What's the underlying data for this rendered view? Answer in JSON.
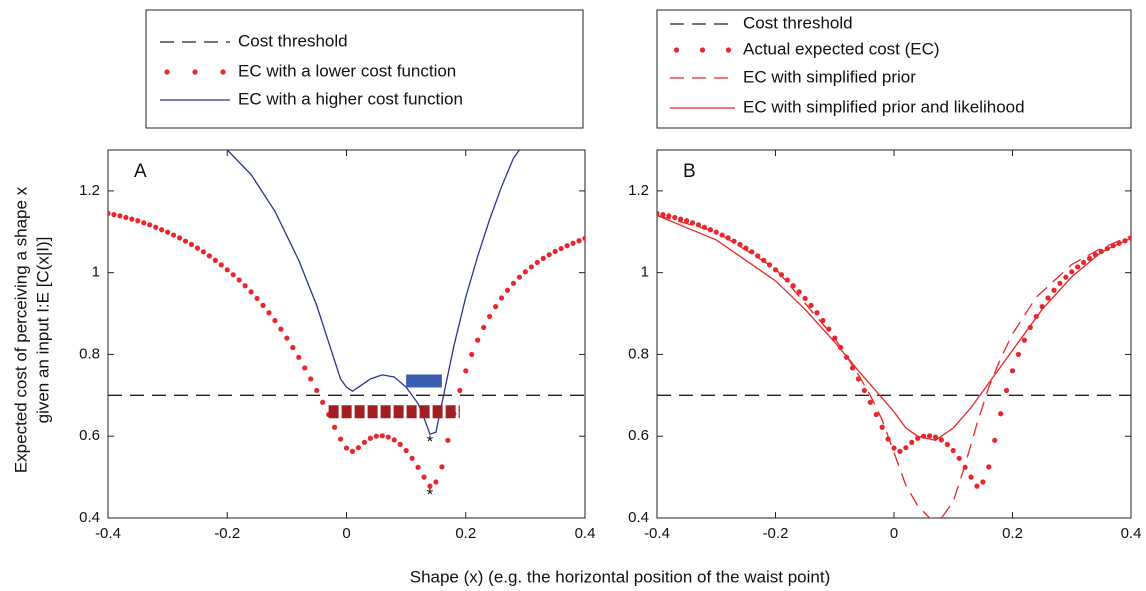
{
  "figure": {
    "xlabel": "Shape (x) (e.g. the horizontal position of the waist point)",
    "ylabel": [
      "Expected cost of perceiving a shape x",
      "given an input I:E [C(x|I)]"
    ]
  },
  "chart_data": [
    {
      "type": "line",
      "panel_label": "A",
      "xlim": [
        -0.4,
        0.4
      ],
      "ylim": [
        0.4,
        1.3
      ],
      "xticks": [
        -0.4,
        -0.2,
        0,
        0.2,
        0.4
      ],
      "yticks": [
        0.4,
        0.6,
        0.8,
        1,
        1.2
      ],
      "series": [
        {
          "name": "Cost threshold",
          "color": "#222222",
          "style": "dashed",
          "x": [
            -0.4,
            0.4
          ],
          "values": [
            0.7,
            0.7
          ]
        },
        {
          "name": "EC with a lower cost function",
          "color": "#e8262b",
          "style": "dots",
          "x": [
            -0.4,
            -0.39,
            -0.38,
            -0.37,
            -0.36,
            -0.35,
            -0.34,
            -0.33,
            -0.32,
            -0.31,
            -0.3,
            -0.29,
            -0.28,
            -0.27,
            -0.26,
            -0.25,
            -0.24,
            -0.23,
            -0.22,
            -0.21,
            -0.2,
            -0.19,
            -0.18,
            -0.17,
            -0.16,
            -0.15,
            -0.14,
            -0.13,
            -0.12,
            -0.11,
            -0.1,
            -0.09,
            -0.08,
            -0.07,
            -0.06,
            -0.05,
            -0.04,
            -0.03,
            -0.02,
            -0.01,
            0,
            0.01,
            0.02,
            0.03,
            0.04,
            0.05,
            0.06,
            0.07,
            0.08,
            0.09,
            0.1,
            0.11,
            0.12,
            0.13,
            0.14,
            0.15,
            0.16,
            0.17,
            0.18,
            0.19,
            0.2,
            0.21,
            0.22,
            0.23,
            0.24,
            0.25,
            0.26,
            0.27,
            0.28,
            0.29,
            0.3,
            0.31,
            0.32,
            0.33,
            0.34,
            0.35,
            0.36,
            0.37,
            0.38,
            0.39,
            0.4
          ],
          "values": [
            1.145,
            1.142,
            1.139,
            1.135,
            1.131,
            1.127,
            1.122,
            1.117,
            1.111,
            1.105,
            1.099,
            1.092,
            1.085,
            1.077,
            1.069,
            1.06,
            1.051,
            1.041,
            1.03,
            1.019,
            1.007,
            0.995,
            0.982,
            0.968,
            0.953,
            0.937,
            0.92,
            0.902,
            0.883,
            0.862,
            0.84,
            0.817,
            0.793,
            0.767,
            0.74,
            0.712,
            0.683,
            0.653,
            0.622,
            0.593,
            0.571,
            0.563,
            0.572,
            0.585,
            0.595,
            0.6,
            0.601,
            0.598,
            0.591,
            0.58,
            0.565,
            0.546,
            0.524,
            0.5,
            0.478,
            0.488,
            0.525,
            0.59,
            0.655,
            0.712,
            0.76,
            0.8,
            0.835,
            0.866,
            0.893,
            0.917,
            0.938,
            0.957,
            0.974,
            0.989,
            1.002,
            1.014,
            1.025,
            1.035,
            1.044,
            1.052,
            1.059,
            1.066,
            1.072,
            1.078,
            1.084
          ]
        },
        {
          "name": "EC with a higher cost function",
          "color": "#2b3590",
          "style": "line",
          "x": [
            -0.2,
            -0.16,
            -0.12,
            -0.08,
            -0.05,
            -0.03,
            -0.01,
            0,
            0.01,
            0.02,
            0.04,
            0.06,
            0.08,
            0.1,
            0.12,
            0.13,
            0.14,
            0.15,
            0.16,
            0.17,
            0.18,
            0.2,
            0.22,
            0.24,
            0.26,
            0.28,
            0.29
          ],
          "values": [
            1.3,
            1.24,
            1.15,
            1.03,
            0.92,
            0.83,
            0.74,
            0.72,
            0.71,
            0.72,
            0.74,
            0.75,
            0.745,
            0.72,
            0.68,
            0.645,
            0.605,
            0.61,
            0.68,
            0.75,
            0.82,
            0.94,
            1.04,
            1.13,
            1.21,
            1.28,
            1.3
          ]
        }
      ],
      "ranges": [
        {
          "color": "#a11e22",
          "x": [
            -0.03,
            0.19
          ],
          "y": 0.66
        },
        {
          "color": "#3a5fb0",
          "x": [
            0.1,
            0.16
          ],
          "y": 0.735
        }
      ],
      "annotations": [
        {
          "text": "*",
          "x": 0.14,
          "y": 0.585
        },
        {
          "text": "*",
          "x": 0.14,
          "y": 0.455
        }
      ]
    },
    {
      "type": "line",
      "panel_label": "B",
      "xlim": [
        -0.4,
        0.4
      ],
      "ylim": [
        0.4,
        1.3
      ],
      "xticks": [
        -0.4,
        -0.2,
        0,
        0.2,
        0.4
      ],
      "yticks": [
        0.4,
        0.6,
        0.8,
        1,
        1.2
      ],
      "series": [
        {
          "name": "Cost threshold",
          "color": "#222222",
          "style": "dashed",
          "x": [
            -0.4,
            0.4
          ],
          "values": [
            0.7,
            0.7
          ]
        },
        {
          "name": "Actual expected cost (EC)",
          "color": "#e8262b",
          "style": "dots",
          "x": [
            -0.4,
            -0.39,
            -0.38,
            -0.37,
            -0.36,
            -0.35,
            -0.34,
            -0.33,
            -0.32,
            -0.31,
            -0.3,
            -0.29,
            -0.28,
            -0.27,
            -0.26,
            -0.25,
            -0.24,
            -0.23,
            -0.22,
            -0.21,
            -0.2,
            -0.19,
            -0.18,
            -0.17,
            -0.16,
            -0.15,
            -0.14,
            -0.13,
            -0.12,
            -0.11,
            -0.1,
            -0.09,
            -0.08,
            -0.07,
            -0.06,
            -0.05,
            -0.04,
            -0.03,
            -0.02,
            -0.01,
            0,
            0.01,
            0.02,
            0.03,
            0.04,
            0.05,
            0.06,
            0.07,
            0.08,
            0.09,
            0.1,
            0.11,
            0.12,
            0.13,
            0.14,
            0.15,
            0.16,
            0.17,
            0.18,
            0.19,
            0.2,
            0.21,
            0.22,
            0.23,
            0.24,
            0.25,
            0.26,
            0.27,
            0.28,
            0.29,
            0.3,
            0.31,
            0.32,
            0.33,
            0.34,
            0.35,
            0.36,
            0.37,
            0.38,
            0.39,
            0.4
          ],
          "values": [
            1.145,
            1.142,
            1.139,
            1.135,
            1.131,
            1.127,
            1.122,
            1.117,
            1.111,
            1.105,
            1.099,
            1.092,
            1.085,
            1.077,
            1.069,
            1.06,
            1.051,
            1.041,
            1.03,
            1.019,
            1.007,
            0.995,
            0.982,
            0.968,
            0.953,
            0.937,
            0.92,
            0.902,
            0.883,
            0.862,
            0.84,
            0.817,
            0.793,
            0.767,
            0.74,
            0.712,
            0.683,
            0.653,
            0.622,
            0.593,
            0.571,
            0.563,
            0.572,
            0.585,
            0.595,
            0.6,
            0.601,
            0.598,
            0.591,
            0.58,
            0.565,
            0.546,
            0.524,
            0.5,
            0.478,
            0.488,
            0.525,
            0.59,
            0.655,
            0.712,
            0.76,
            0.8,
            0.835,
            0.866,
            0.893,
            0.917,
            0.938,
            0.957,
            0.974,
            0.989,
            1.002,
            1.014,
            1.025,
            1.035,
            1.044,
            1.052,
            1.059,
            1.066,
            1.072,
            1.078,
            1.084
          ]
        },
        {
          "name": "EC with simplified prior",
          "color": "#e8262b",
          "style": "dashed",
          "x": [
            -0.4,
            -0.3,
            -0.2,
            -0.1,
            -0.06,
            -0.04,
            -0.02,
            0,
            0.02,
            0.04,
            0.06,
            0.08,
            0.1,
            0.12,
            0.14,
            0.16,
            0.18,
            0.2,
            0.24,
            0.3,
            0.35,
            0.4
          ],
          "values": [
            1.14,
            1.1,
            1.01,
            0.84,
            0.75,
            0.7,
            0.64,
            0.56,
            0.48,
            0.43,
            0.4,
            0.4,
            0.44,
            0.53,
            0.63,
            0.72,
            0.79,
            0.85,
            0.94,
            1.02,
            1.06,
            1.09
          ]
        },
        {
          "name": "EC with simplified prior and likelihood",
          "color": "#e8262b",
          "style": "line",
          "x": [
            -0.4,
            -0.3,
            -0.2,
            -0.15,
            -0.1,
            -0.06,
            -0.03,
            0,
            0.02,
            0.04,
            0.07,
            0.1,
            0.13,
            0.16,
            0.2,
            0.25,
            0.3,
            0.35,
            0.4
          ],
          "values": [
            1.14,
            1.08,
            0.98,
            0.91,
            0.83,
            0.76,
            0.71,
            0.66,
            0.62,
            0.6,
            0.59,
            0.62,
            0.67,
            0.73,
            0.81,
            0.91,
            0.99,
            1.05,
            1.085
          ]
        }
      ]
    }
  ]
}
